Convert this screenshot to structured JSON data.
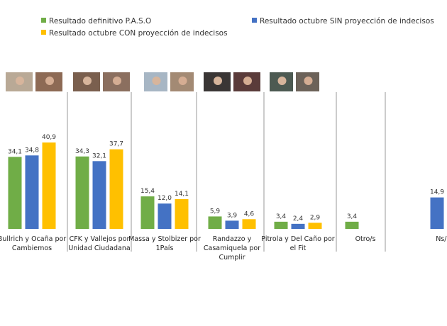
{
  "chart_data": {
    "type": "bar",
    "title": "",
    "xlabel": "",
    "ylabel": "",
    "ylim": [
      0,
      45
    ],
    "grid": false,
    "legend_position": "top",
    "categories": [
      [
        "Bullrich y Ocaña por",
        "Cambiemos"
      ],
      [
        "CFK y Vallejos por",
        "Unidad Ciudadana"
      ],
      [
        "Massa y Stolbizer por",
        "1País"
      ],
      [
        "Randazzo y",
        "Casamiquela por",
        "Cumplir"
      ],
      [
        "Pitrola y Del Caño por",
        "el Fit"
      ],
      [
        "Otro/s"
      ],
      [
        "Ns/Nc"
      ]
    ],
    "series": [
      {
        "name": "Resultado definitivo P.A.S.O",
        "color": "#70ad47",
        "values": [
          34.1,
          34.3,
          15.4,
          5.9,
          3.4,
          3.4,
          null
        ],
        "labels": [
          "34,1",
          "34,3",
          "15,4",
          "5,9",
          "3,4",
          "3,4",
          null
        ]
      },
      {
        "name": "Resultado octubre SIN proyección de indecisos",
        "color": "#4472c4",
        "values": [
          34.8,
          32.1,
          12.0,
          3.9,
          2.4,
          null,
          14.9
        ],
        "labels": [
          "34,8",
          "32,1",
          "12,0",
          "3,9",
          "2,4",
          null,
          "14,9"
        ]
      },
      {
        "name": "Resultado octubre CON proyección de indecisos",
        "color": "#ffc000",
        "values": [
          40.9,
          37.7,
          14.1,
          4.6,
          2.9,
          null,
          null
        ],
        "labels": [
          "40,9",
          "37,7",
          "14,1",
          "4,6",
          "2,9",
          null,
          null
        ]
      }
    ]
  }
}
